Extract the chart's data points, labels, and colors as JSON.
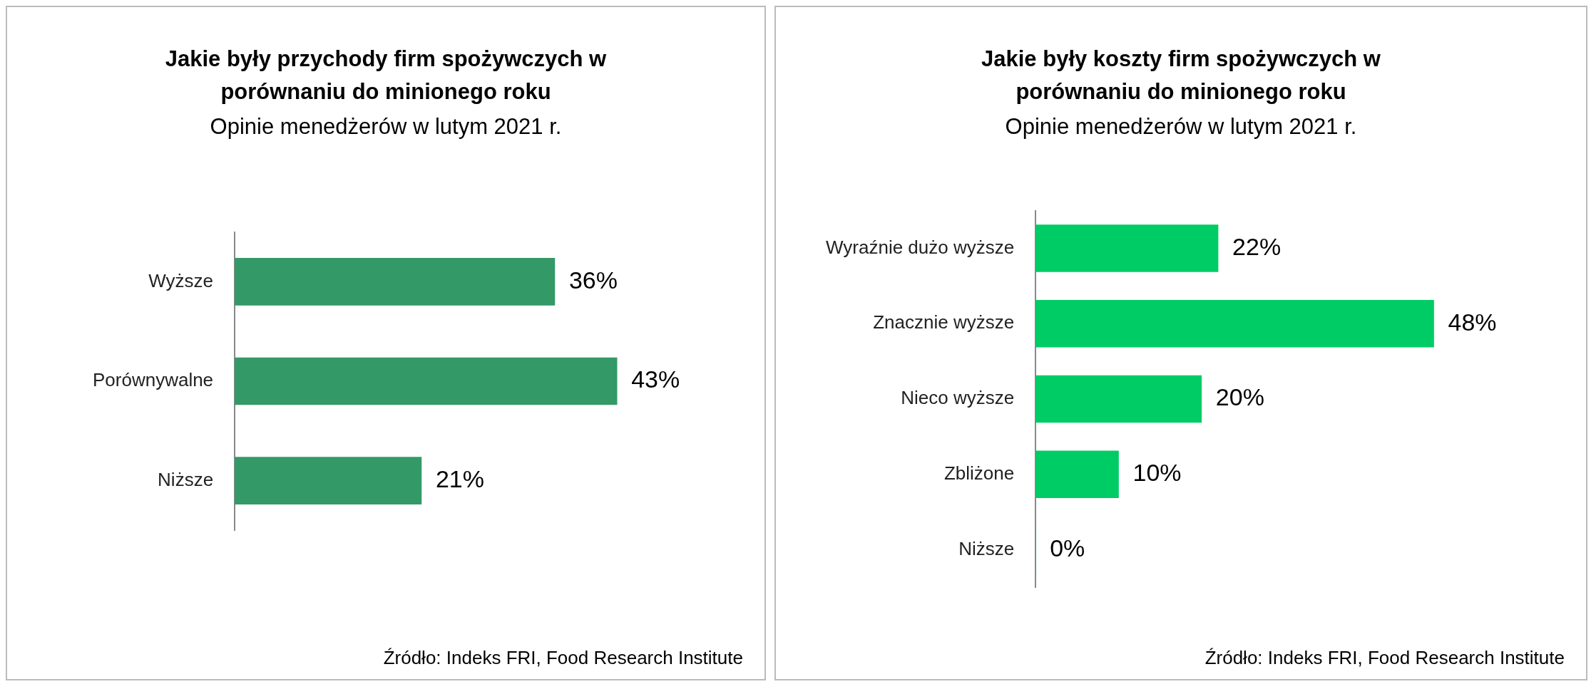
{
  "chart_data": [
    {
      "type": "bar",
      "orientation": "horizontal",
      "title": "Jakie były przychody  firm spożywczych w porównaniu do minionego roku",
      "subtitle": "Opinie menedżerów w lutym 2021 r.",
      "categories": [
        "Wyższe",
        "Porównywalne",
        "Niższe"
      ],
      "values": [
        36,
        43,
        21
      ],
      "value_labels": [
        "36%",
        "43%",
        "21%"
      ],
      "color": "#339966",
      "tick_labels": "y",
      "annotations": [
        "Źródło: Indeks FRI, Food Research Institute"
      ]
    },
    {
      "type": "bar",
      "orientation": "horizontal",
      "title": "Jakie były koszty firm spożywczych w porównaniu do minionego roku",
      "subtitle": "Opinie menedżerów w lutym 2021 r.",
      "categories": [
        "Wyraźnie dużo wyższe",
        "Znacznie wyższe",
        "Nieco wyższe",
        "Zbliżone",
        "Niższe"
      ],
      "values": [
        22,
        48,
        20,
        10,
        0
      ],
      "value_labels": [
        "22%",
        "48%",
        "20%",
        "10%",
        "0%"
      ],
      "color": "#00cc66",
      "tick_labels": "y",
      "annotations": [
        "Źródło: Indeks FRI, Food Research Institute"
      ]
    }
  ]
}
